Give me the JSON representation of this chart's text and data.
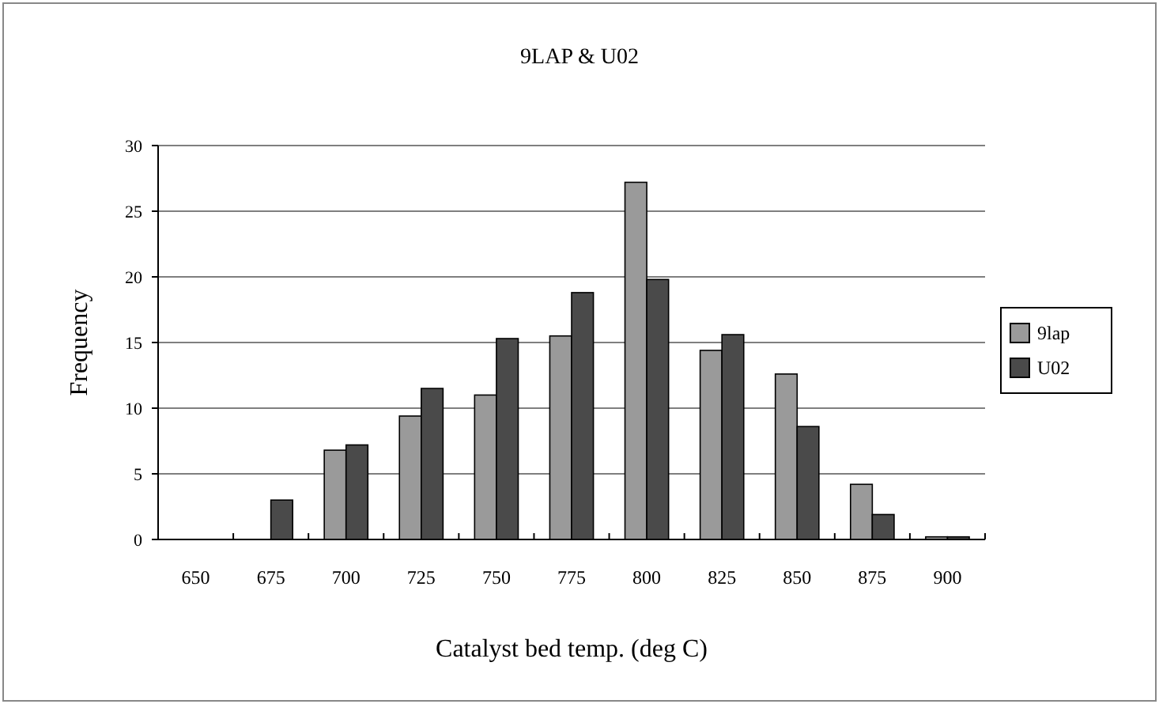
{
  "chart_data": {
    "type": "bar",
    "title": "9LAP & U02",
    "xlabel": "Catalyst bed temp. (deg C)",
    "ylabel": "Frequency",
    "categories": [
      "650",
      "675",
      "700",
      "725",
      "750",
      "775",
      "800",
      "825",
      "850",
      "875",
      "900"
    ],
    "series": [
      {
        "name": "9lap",
        "color": "#9a9a9a",
        "values": [
          0,
          0,
          6.8,
          9.4,
          11,
          15.5,
          27.2,
          14.4,
          12.6,
          4.2,
          0.2
        ]
      },
      {
        "name": "U02",
        "color": "#4a4a4a",
        "values": [
          0,
          3,
          7.2,
          11.5,
          15.3,
          18.8,
          19.8,
          15.6,
          8.6,
          1.9,
          0.2
        ]
      }
    ],
    "ylim": [
      0,
      30
    ],
    "yticks": [
      0,
      5,
      10,
      15,
      20,
      25,
      30
    ],
    "grid": "y",
    "legend": "right"
  }
}
